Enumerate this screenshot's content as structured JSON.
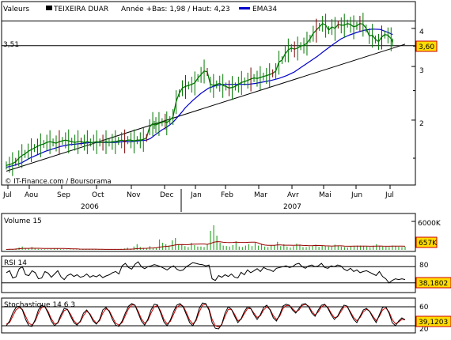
{
  "legend": {
    "label_valeurs": "Valeurs",
    "label_security": "TEIXEIRA DUAR",
    "label_range": "Année +Bas: 1,98 / Haut: 4,23",
    "label_ema": "EMA34"
  },
  "colors": {
    "price": "#007700",
    "price_dark": "#7a0000",
    "ema": "#0000cc",
    "trend": "#000000",
    "volume": "#33aa33",
    "volume_avg": "#990000",
    "value_box_bg": "#ffdd00",
    "value_box_border": "#cc0000",
    "grid": "#cccccc"
  },
  "watermark": "© IT-Finance.com / Boursorama",
  "chart_data": [
    {
      "type": "line",
      "name": "main",
      "x_months": [
        "Jul",
        "Aou",
        "Sep",
        "Oct",
        "Nov",
        "Dec",
        "Jan",
        "Feb",
        "Mar",
        "Avr",
        "Mai",
        "Jun",
        "Jul"
      ],
      "years": [
        "2006",
        "2007"
      ],
      "yticks": [
        "4",
        "3",
        "2"
      ],
      "ylim": [
        1.3,
        4.4
      ],
      "log_scale": true,
      "hlines": [
        4.23,
        3.51
      ],
      "hline_label": "3,51",
      "last_value_label": "3,60",
      "series": [
        {
          "key": "price",
          "x": [
            0,
            4,
            8,
            12,
            16,
            20,
            24,
            28,
            32,
            36,
            40,
            44,
            48,
            52,
            56,
            60,
            64,
            68,
            72,
            76,
            80,
            84,
            88,
            92,
            96,
            100,
            104,
            108,
            112,
            116,
            120,
            124,
            128,
            132,
            136,
            140,
            144,
            148,
            152,
            156,
            160,
            164,
            168,
            172,
            176,
            180,
            184,
            188,
            190,
            192,
            196,
            200,
            204,
            206,
            210,
            214,
            218,
            222,
            226,
            230,
            234,
            238,
            242,
            246,
            250,
            254,
            258,
            262,
            266,
            270,
            274,
            278,
            282,
            286,
            290,
            294,
            298,
            302,
            306,
            310,
            314,
            318,
            322,
            326,
            330,
            334,
            338,
            342,
            346,
            350,
            354,
            358,
            362,
            366,
            370,
            374,
            378,
            382,
            386,
            390,
            394,
            398,
            402,
            406,
            410,
            414,
            418,
            422,
            426,
            430,
            434,
            438,
            442,
            446,
            450,
            454,
            458,
            462,
            466,
            470,
            474,
            478,
            482,
            486,
            490,
            494,
            496
          ],
          "values": [
            1.42,
            1.43,
            1.44,
            1.46,
            1.5,
            1.53,
            1.55,
            1.58,
            1.6,
            1.62,
            1.64,
            1.66,
            1.67,
            1.69,
            1.7,
            1.69,
            1.68,
            1.7,
            1.71,
            1.72,
            1.71,
            1.7,
            1.69,
            1.7,
            1.7,
            1.69,
            1.7,
            1.69,
            1.69,
            1.7,
            1.69,
            1.69,
            1.7,
            1.69,
            1.7,
            1.7,
            1.71,
            1.72,
            1.71,
            1.72,
            1.72,
            1.71,
            1.72,
            1.72,
            1.73,
            1.75,
            1.9,
            1.95,
            1.93,
            1.93,
            1.95,
            1.97,
            1.98,
            1.96,
            2.0,
            2.05,
            2.3,
            2.45,
            2.55,
            2.58,
            2.6,
            2.62,
            2.65,
            2.75,
            2.82,
            2.9,
            2.88,
            2.62,
            2.6,
            2.62,
            2.64,
            2.6,
            2.58,
            2.55,
            2.56,
            2.58,
            2.62,
            2.66,
            2.68,
            2.7,
            2.73,
            2.75,
            2.74,
            2.76,
            2.78,
            2.8,
            2.82,
            2.85,
            2.9,
            3.1,
            3.15,
            3.3,
            3.4,
            3.45,
            3.42,
            3.45,
            3.5,
            3.52,
            3.58,
            3.7,
            3.85,
            3.95,
            4.05,
            4.15,
            4.1,
            3.95,
            4.05,
            4.0,
            4.12,
            4.1,
            4.1,
            4.15,
            4.12,
            4.05,
            4.08,
            4.15,
            4.13,
            4.0,
            3.78,
            3.8,
            3.68,
            3.62,
            3.75,
            3.82,
            3.8,
            3.7,
            3.6
          ]
        },
        {
          "key": "ema",
          "x": [
            0,
            10,
            20,
            30,
            40,
            50,
            60,
            70,
            80,
            90,
            100,
            110,
            120,
            130,
            140,
            150,
            160,
            170,
            180,
            185,
            190,
            195,
            200,
            205,
            210,
            215,
            220,
            225,
            230,
            240,
            250,
            260,
            270,
            280,
            290,
            300,
            310,
            320,
            330,
            340,
            350,
            360,
            370,
            380,
            390,
            400,
            410,
            420,
            430,
            440,
            450,
            460,
            470,
            480,
            490,
            496
          ],
          "values": [
            1.4,
            1.42,
            1.45,
            1.5,
            1.54,
            1.58,
            1.61,
            1.64,
            1.66,
            1.67,
            1.68,
            1.69,
            1.69,
            1.69,
            1.69,
            1.7,
            1.7,
            1.71,
            1.72,
            1.74,
            1.78,
            1.82,
            1.86,
            1.89,
            1.93,
            1.98,
            2.05,
            2.12,
            2.2,
            2.33,
            2.45,
            2.55,
            2.6,
            2.62,
            2.62,
            2.62,
            2.62,
            2.64,
            2.67,
            2.7,
            2.74,
            2.8,
            2.88,
            3.0,
            3.12,
            3.25,
            3.4,
            3.55,
            3.7,
            3.8,
            3.88,
            3.95,
            3.98,
            3.97,
            3.88,
            3.82
          ]
        },
        {
          "key": "trend",
          "x": [
            0,
            512
          ],
          "values": [
            1.36,
            3.55
          ]
        }
      ]
    },
    {
      "type": "bar",
      "name": "volume",
      "title": "Volume 15",
      "ytick_label": "6000K",
      "last_value_label": "657K",
      "ylim": [
        0,
        7000
      ],
      "values": [
        80,
        150,
        120,
        300,
        500,
        700,
        400,
        300,
        600,
        250,
        200,
        150,
        120,
        100,
        200,
        350,
        300,
        150,
        120,
        100,
        90,
        80,
        70,
        100,
        120,
        150,
        130,
        90,
        80,
        70,
        60,
        80,
        90,
        110,
        100,
        130,
        200,
        300,
        450,
        250,
        700,
        1200,
        600,
        400,
        300,
        800,
        400,
        500,
        2200,
        1500,
        1200,
        900,
        2000,
        2500,
        1200,
        1100,
        800,
        600,
        1500,
        1000,
        700,
        700,
        600,
        1200,
        4000,
        5200,
        3000,
        1500,
        900,
        800,
        700,
        1000,
        1800,
        700,
        600,
        900,
        1200,
        800,
        1500,
        900,
        1300,
        700,
        600,
        900,
        1000,
        1700,
        800,
        1200,
        700,
        500,
        800,
        1300,
        1100,
        600,
        600,
        700,
        900,
        1100,
        650,
        900,
        800,
        700,
        650,
        1100,
        900,
        700,
        600,
        500,
        700,
        800,
        900,
        900,
        850,
        700,
        600,
        900,
        1200,
        800,
        700,
        650,
        600,
        900,
        800,
        650,
        600,
        657
      ]
    },
    {
      "type": "line",
      "name": "rsi",
      "title": "RSI 14",
      "ytick_label": "80",
      "last_value_label": "38,1802",
      "ylim": [
        10,
        90
      ],
      "hlines": [
        70,
        30
      ],
      "values": [
        55,
        60,
        42,
        45,
        65,
        70,
        50,
        48,
        60,
        55,
        40,
        42,
        58,
        54,
        44,
        52,
        60,
        45,
        38,
        48,
        52,
        46,
        50,
        44,
        46,
        52,
        44,
        48,
        45,
        50,
        43,
        47,
        50,
        55,
        58,
        52,
        72,
        78,
        68,
        64,
        76,
        82,
        70,
        65,
        70,
        72,
        75,
        73,
        70,
        66,
        62,
        68,
        72,
        64,
        60,
        62,
        70,
        75,
        80,
        78,
        76,
        75,
        72,
        74,
        40,
        36,
        48,
        44,
        50,
        46,
        52,
        44,
        42,
        56,
        50,
        62,
        55,
        60,
        65,
        58,
        68,
        64,
        62,
        58,
        66,
        68,
        70,
        72,
        68,
        70,
        76,
        78,
        70,
        66,
        72,
        74,
        70,
        72,
        78,
        68,
        66,
        72,
        70,
        74,
        72,
        64,
        60,
        66,
        58,
        62,
        55,
        58,
        60,
        56,
        52,
        48,
        58,
        46,
        40,
        30,
        36,
        40,
        38,
        40,
        38
      ]
    },
    {
      "type": "line",
      "name": "stochastic",
      "title": "Stochastique 14 6 3",
      "ytick_labels": [
        "60",
        "20"
      ],
      "last_value_label": "39,1203",
      "ylim": [
        0,
        100
      ],
      "hlines": [
        80,
        20
      ],
      "series": [
        {
          "key": "stoch_k",
          "values": [
            20,
            35,
            60,
            78,
            82,
            70,
            40,
            20,
            18,
            40,
            70,
            85,
            80,
            60,
            35,
            20,
            30,
            55,
            75,
            72,
            50,
            30,
            22,
            35,
            60,
            70,
            55,
            35,
            25,
            40,
            70,
            78,
            65,
            40,
            22,
            18,
            35,
            60,
            82,
            90,
            85,
            60,
            35,
            22,
            40,
            70,
            88,
            86,
            60,
            32,
            20,
            38,
            65,
            85,
            90,
            80,
            55,
            30,
            20,
            40,
            75,
            92,
            90,
            70,
            30,
            12,
            10,
            25,
            60,
            80,
            72,
            50,
            30,
            42,
            65,
            80,
            75,
            55,
            40,
            55,
            78,
            85,
            70,
            45,
            35,
            55,
            82,
            88,
            85,
            70,
            60,
            75,
            88,
            90,
            80,
            60,
            50,
            70,
            85,
            88,
            75,
            55,
            40,
            50,
            70,
            85,
            82,
            60,
            40,
            30,
            50,
            70,
            75,
            65,
            45,
            30,
            55,
            78,
            80,
            60,
            30,
            20,
            35,
            45,
            39
          ]
        },
        {
          "key": "stoch_d",
          "values": [
            25,
            30,
            50,
            70,
            78,
            72,
            50,
            28,
            22,
            35,
            60,
            78,
            80,
            65,
            42,
            26,
            28,
            48,
            68,
            72,
            56,
            36,
            26,
            32,
            52,
            66,
            58,
            40,
            28,
            36,
            60,
            74,
            68,
            48,
            28,
            22,
            30,
            52,
            74,
            86,
            85,
            66,
            42,
            28,
            36,
            60,
            80,
            84,
            66,
            40,
            26,
            34,
            56,
            78,
            86,
            82,
            62,
            38,
            26,
            36,
            64,
            85,
            88,
            74,
            40,
            20,
            16,
            24,
            50,
            72,
            72,
            56,
            36,
            40,
            58,
            74,
            74,
            60,
            46,
            52,
            70,
            80,
            72,
            52,
            40,
            50,
            74,
            84,
            84,
            74,
            64,
            70,
            84,
            88,
            82,
            66,
            54,
            64,
            80,
            86,
            78,
            60,
            46,
            48,
            64,
            80,
            80,
            64,
            46,
            36,
            46,
            64,
            72,
            66,
            50,
            36,
            50,
            70,
            76,
            64,
            40,
            26,
            32,
            40,
            39
          ]
        }
      ]
    }
  ]
}
